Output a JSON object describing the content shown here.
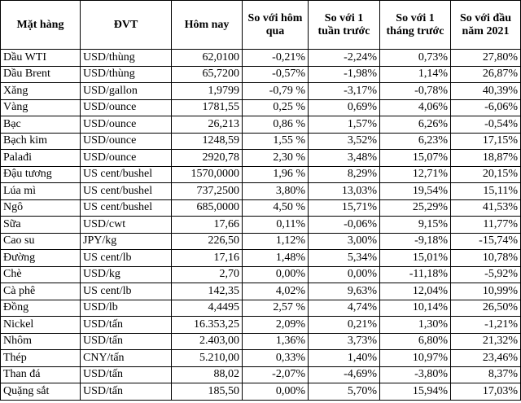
{
  "table": {
    "headers": [
      "Mặt hàng",
      "ĐVT",
      "Hôm nay",
      "So với hôm qua",
      "So với 1 tuần trước",
      "So với 1 tháng trước",
      "So với đầu năm 2021"
    ],
    "rows": [
      [
        "Dầu WTI",
        "USD/thùng",
        "62,0100",
        "-0,21%",
        "-2,24%",
        "0,73%",
        "27,80%"
      ],
      [
        "Dầu Brent",
        "USD/thùng",
        "65,7200",
        "-0,57%",
        "-1,98%",
        "1,14%",
        "26,87%"
      ],
      [
        "Xăng",
        "USD/gallon",
        "1,9799",
        "-0,79 %",
        "-3,17%",
        "-0,78%",
        "40,39%"
      ],
      [
        "Vàng",
        "USD/ounce",
        "1781,55",
        "0,25 %",
        "0,69%",
        "4,06%",
        "-6,06%"
      ],
      [
        "Bạc",
        "USD/ounce",
        "26,213",
        "0,86 %",
        "1,57%",
        "6,26%",
        "-0,54%"
      ],
      [
        "Bạch kim",
        "USD/ounce",
        "1248,59",
        "1,55 %",
        "3,52%",
        "6,23%",
        "17,15%"
      ],
      [
        "Palađi",
        "USD/ounce",
        "2920,78",
        "2,30 %",
        "3,48%",
        "15,07%",
        "18,87%"
      ],
      [
        "Đậu tương",
        "US cent/bushel",
        "1570,0000",
        "1,96 %",
        "8,29%",
        "12,71%",
        "20,15%"
      ],
      [
        "Lúa mì",
        "US cent/bushel",
        "737,2500",
        "3,80%",
        "13,03%",
        "19,54%",
        "15,11%"
      ],
      [
        "Ngô",
        "US cent/bushel",
        "685,0000",
        "4,50 %",
        "15,71%",
        "25,29%",
        "41,53%"
      ],
      [
        "Sữa",
        "USD/cwt",
        "17,66",
        "0,11%",
        "-0,06%",
        "9,15%",
        "11,77%"
      ],
      [
        "Cao su",
        "JPY/kg",
        "226,50",
        "1,12%",
        "3,00%",
        "-9,18%",
        "-15,74%"
      ],
      [
        "Đường",
        "US cent/lb",
        "17,16",
        "1,48%",
        "5,34%",
        "15,01%",
        "10,78%"
      ],
      [
        "Chè",
        "USD/kg",
        "2,70",
        "0,00%",
        "0,00%",
        "-11,18%",
        "-5,92%"
      ],
      [
        "Cà phê",
        "US cent/lb",
        "142,35",
        "4,02%",
        "9,63%",
        "12,04%",
        "10,99%"
      ],
      [
        "Đồng",
        "USD/lb",
        "4,4495",
        "2,57 %",
        "4,74%",
        "10,14%",
        "26,50%"
      ],
      [
        "Nickel",
        "USD/tấn",
        "16.353,25",
        "2,09%",
        "0,21%",
        "1,30%",
        "-1,21%"
      ],
      [
        "Nhôm",
        "USD/tấn",
        "2.403,00",
        "1,36%",
        "3,73%",
        "6,80%",
        "21,32%"
      ],
      [
        "Thép",
        "CNY/tấn",
        "5.210,00",
        "0,33%",
        "1,40%",
        "10,97%",
        "23,46%"
      ],
      [
        "Than đá",
        "USD/tấn",
        "88,02",
        "-2,07%",
        "-4,69%",
        "-3,80%",
        "8,37%"
      ],
      [
        "Quặng sắt",
        "USD/tấn",
        "185,50",
        "0,00%",
        "5,70%",
        "15,94%",
        "17,03%"
      ]
    ]
  }
}
